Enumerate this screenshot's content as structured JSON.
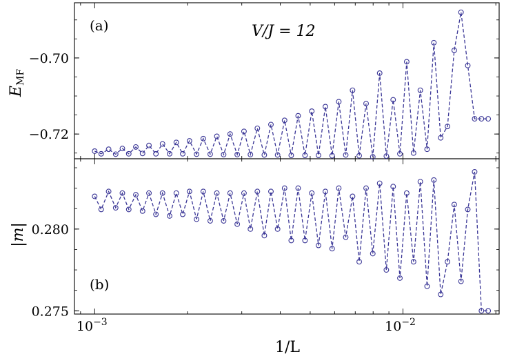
{
  "chart_data": [
    {
      "type": "line",
      "panel_label": "(a)",
      "annotation": "V/J = 12",
      "ylabel": "E_MF",
      "ylabel_main": "E",
      "ylabel_sub": "MF",
      "xlabel": "",
      "xscale": "log",
      "xlim": [
        0.00086,
        0.0205
      ],
      "ylim": [
        -0.7265,
        -0.6855
      ],
      "yticks": [
        -0.72,
        -0.7
      ],
      "ytick_labels": [
        "−0.72",
        "−0.70"
      ],
      "series": [
        {
          "name": "E_MF",
          "x": [
            0.001,
            0.00105,
            0.00111,
            0.00117,
            0.00123,
            0.00129,
            0.00136,
            0.00143,
            0.0015,
            0.00158,
            0.00166,
            0.00175,
            0.00184,
            0.00193,
            0.00203,
            0.00214,
            0.00225,
            0.00237,
            0.00249,
            0.00262,
            0.00275,
            0.0029,
            0.00305,
            0.0032,
            0.00337,
            0.00355,
            0.00373,
            0.00392,
            0.00413,
            0.00434,
            0.00457,
            0.00481,
            0.00506,
            0.00532,
            0.0056,
            0.00589,
            0.00619,
            0.00652,
            0.00686,
            0.00721,
            0.00759,
            0.00798,
            0.0084,
            0.00883,
            0.00929,
            0.00977,
            0.01028,
            0.01082,
            0.01138,
            0.01197,
            0.01259,
            0.01325,
            0.01394,
            0.01466,
            0.01542,
            0.01622,
            0.01707,
            0.01796,
            0.01889
          ],
          "values": [
            -0.7245,
            -0.7252,
            -0.724,
            -0.7253,
            -0.7238,
            -0.7252,
            -0.7234,
            -0.7251,
            -0.723,
            -0.7252,
            -0.7226,
            -0.7252,
            -0.7222,
            -0.7252,
            -0.7218,
            -0.7253,
            -0.7212,
            -0.7253,
            -0.7206,
            -0.7254,
            -0.72,
            -0.7254,
            -0.7193,
            -0.7254,
            -0.7185,
            -0.7255,
            -0.7175,
            -0.7255,
            -0.7164,
            -0.7256,
            -0.7152,
            -0.7256,
            -0.714,
            -0.7256,
            -0.7128,
            -0.7257,
            -0.7115,
            -0.7255,
            -0.7085,
            -0.7257,
            -0.712,
            -0.726,
            -0.704,
            -0.7258,
            -0.711,
            -0.7252,
            -0.701,
            -0.725,
            -0.7085,
            -0.724,
            -0.696,
            -0.721,
            -0.718,
            -0.698,
            -0.688,
            -0.702,
            -0.716,
            -0.716,
            -0.716
          ]
        }
      ]
    },
    {
      "type": "line",
      "panel_label": "(b)",
      "ylabel": "|m|",
      "xlabel": "1/L",
      "xscale": "log",
      "xlim": [
        0.00086,
        0.0205
      ],
      "xticks": [
        0.001,
        0.01
      ],
      "xtick_base": "10",
      "xtick_exps": [
        "−3",
        "−2"
      ],
      "ylim": [
        0.2748,
        0.2843
      ],
      "yticks": [
        0.275,
        0.28
      ],
      "ytick_labels": [
        "0.275",
        "0.280"
      ],
      "series": [
        {
          "name": "|m|",
          "x": [
            0.001,
            0.00105,
            0.00111,
            0.00117,
            0.00123,
            0.00129,
            0.00136,
            0.00143,
            0.0015,
            0.00158,
            0.00166,
            0.00175,
            0.00184,
            0.00193,
            0.00203,
            0.00214,
            0.00225,
            0.00237,
            0.00249,
            0.00262,
            0.00275,
            0.0029,
            0.00305,
            0.0032,
            0.00337,
            0.00355,
            0.00373,
            0.00392,
            0.00413,
            0.00434,
            0.00457,
            0.00481,
            0.00506,
            0.00532,
            0.0056,
            0.00589,
            0.00619,
            0.00652,
            0.00686,
            0.00721,
            0.00759,
            0.00798,
            0.0084,
            0.00883,
            0.00929,
            0.00977,
            0.01028,
            0.01082,
            0.01138,
            0.01197,
            0.01259,
            0.01325,
            0.01394,
            0.01466,
            0.01542,
            0.01622,
            0.01707,
            0.01796,
            0.01889
          ],
          "values": [
            0.282,
            0.2812,
            0.2823,
            0.2813,
            0.2822,
            0.2812,
            0.2821,
            0.2811,
            0.2822,
            0.2809,
            0.2822,
            0.2808,
            0.2822,
            0.2809,
            0.2823,
            0.2806,
            0.2823,
            0.2805,
            0.2822,
            0.2805,
            0.2822,
            0.2803,
            0.2822,
            0.28,
            0.2823,
            0.2796,
            0.2823,
            0.28,
            0.2825,
            0.2793,
            0.2825,
            0.2793,
            0.2822,
            0.279,
            0.2823,
            0.2788,
            0.2825,
            0.2795,
            0.282,
            0.278,
            0.2825,
            0.2785,
            0.2828,
            0.2775,
            0.2826,
            0.277,
            0.2822,
            0.278,
            0.2829,
            0.2765,
            0.283,
            0.276,
            0.278,
            0.2815,
            0.2768,
            0.2812,
            0.2835,
            0.275,
            0.275
          ]
        }
      ]
    }
  ]
}
